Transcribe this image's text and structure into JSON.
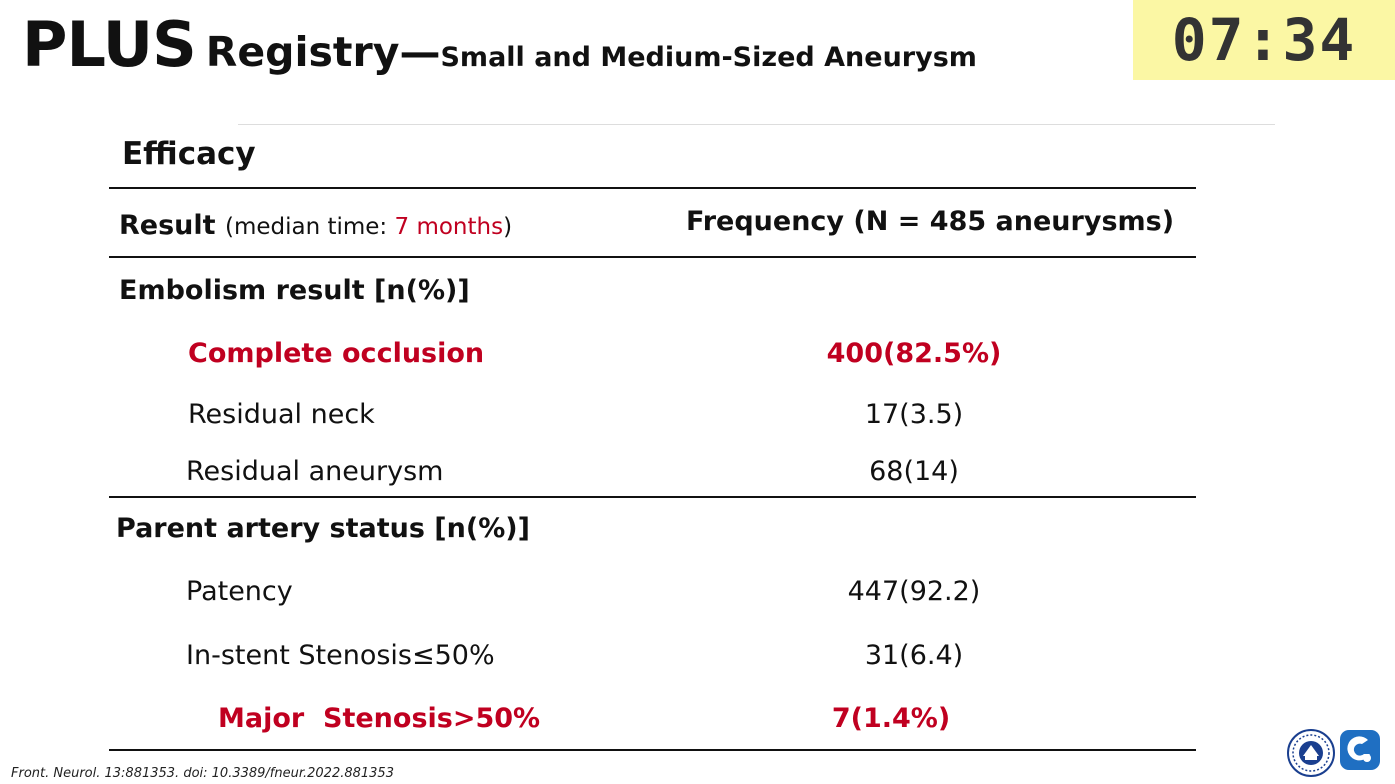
{
  "title": {
    "main": "PLUS",
    "mid": "Registry—",
    "sub": "Small and Medium-Sized Aneurysm"
  },
  "timer": "07:34",
  "section_title": "Efficacy",
  "table": {
    "header": {
      "result_label": "Result",
      "median_open": "(median time: ",
      "median_value": "7 months",
      "median_close": ")",
      "frequency_label": "Frequency (N = 485 aneurysms)"
    },
    "groups": [
      {
        "title": "Embolism result [n(%)]",
        "rows": [
          {
            "label": "Complete occlusion",
            "value": "400(82.5%)",
            "highlight": true
          },
          {
            "label": "Residual neck",
            "value": "17(3.5)",
            "highlight": false
          },
          {
            "label": "Residual aneurysm",
            "value": "68(14)",
            "highlight": false
          }
        ]
      },
      {
        "title": "Parent artery status [n(%)]",
        "rows": [
          {
            "label": "Patency",
            "value": "447(92.2)",
            "highlight": false
          },
          {
            "label": "In-stent Stenosis≤50%",
            "value": "31(6.4)",
            "highlight": false
          },
          {
            "label": "Major  Stenosis>50%",
            "value": "7(1.4%)",
            "highlight": true
          }
        ]
      }
    ]
  },
  "citation": "Front. Neurol. 13:881353. doi: 10.3389/fneur.2022.881353",
  "logos": {
    "left": "university-seal-icon",
    "right": "hospital-logo-icon",
    "accent": "#1f6fc2"
  },
  "colors": {
    "highlight": "#c00020",
    "timer_bg": "#fbf7a4"
  }
}
